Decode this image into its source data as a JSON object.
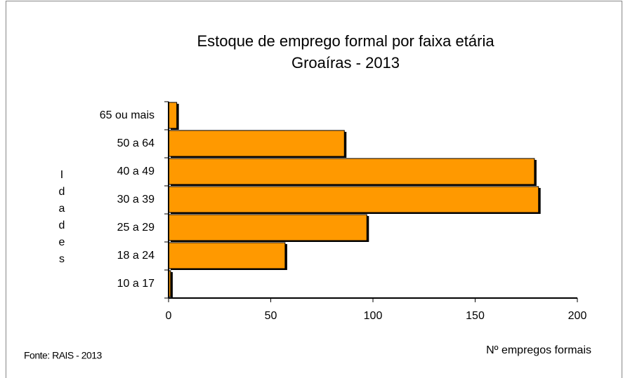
{
  "chart_data": {
    "type": "barh",
    "title": "Estoque de emprego formal por faixa etária",
    "subtitle": "Groaíras - 2013",
    "categories": [
      "65 ou mais",
      "50 a 64",
      "40 a 49",
      "30 a 39",
      "25 a 29",
      "18 a 24",
      "10 a 17"
    ],
    "values": [
      4,
      86,
      179,
      181,
      97,
      57,
      1
    ],
    "color": "#ff9900",
    "xlim": [
      0,
      200
    ],
    "xticks": [
      0,
      50,
      100,
      150,
      200
    ],
    "ylabel": "Idades",
    "xlabel": "Nº empregos formais",
    "source": "Fonte: RAIS - 2013"
  }
}
